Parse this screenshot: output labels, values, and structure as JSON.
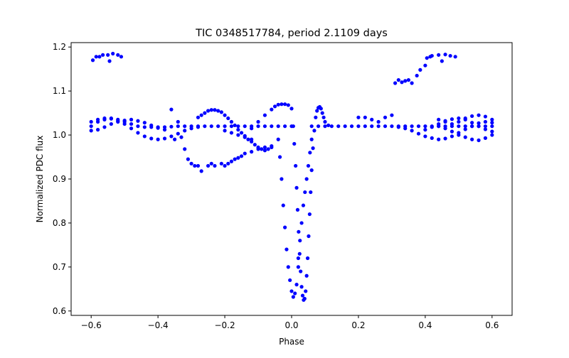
{
  "chart_data": {
    "type": "scatter",
    "title": "TIC 0348517784, period 2.1109 days",
    "xlabel": "Phase",
    "ylabel": "Normalized PDC flux",
    "xlim": [
      -0.66,
      0.66
    ],
    "ylim": [
      0.59,
      1.21
    ],
    "xticks": [
      -0.6,
      -0.4,
      -0.2,
      0.0,
      0.2,
      0.4,
      0.6
    ],
    "xtick_labels": [
      "−0.6",
      "−0.4",
      "−0.2",
      "0.0",
      "0.2",
      "0.4",
      "0.6"
    ],
    "yticks": [
      0.6,
      0.7,
      0.8,
      0.9,
      1.0,
      1.1,
      1.2
    ],
    "ytick_labels": [
      "0.6",
      "0.7",
      "0.8",
      "0.9",
      "1.0",
      "1.1",
      "1.2"
    ],
    "grid": false,
    "legend": "none",
    "marker_color": "#0000ff",
    "series": [
      {
        "points": [
          [
            -0.6,
            1.02
          ],
          [
            -0.58,
            1.03
          ],
          [
            -0.56,
            1.035
          ],
          [
            -0.54,
            1.038
          ],
          [
            -0.52,
            1.035
          ],
          [
            -0.5,
            1.03
          ],
          [
            -0.48,
            1.025
          ],
          [
            -0.46,
            1.02
          ],
          [
            -0.44,
            1.018
          ],
          [
            -0.42,
            1.018
          ],
          [
            -0.4,
            1.018
          ],
          [
            -0.38,
            1.018
          ],
          [
            -0.36,
            1.019
          ],
          [
            -0.34,
            1.02
          ],
          [
            -0.32,
            1.02
          ],
          [
            -0.3,
            1.02
          ],
          [
            -0.28,
            1.02
          ],
          [
            -0.26,
            1.02
          ],
          [
            -0.24,
            1.02
          ],
          [
            -0.22,
            1.02
          ],
          [
            -0.2,
            1.02
          ],
          [
            -0.18,
            1.02
          ],
          [
            -0.16,
            1.02
          ],
          [
            -0.14,
            1.02
          ],
          [
            -0.12,
            1.02
          ],
          [
            -0.1,
            1.02
          ],
          [
            -0.08,
            1.02
          ],
          [
            -0.06,
            1.02
          ],
          [
            -0.04,
            1.02
          ],
          [
            -0.02,
            1.02
          ],
          [
            0.0,
            1.02
          ],
          [
            0.06,
            1.02
          ],
          [
            0.08,
            1.02
          ],
          [
            0.1,
            1.02
          ],
          [
            0.12,
            1.02
          ],
          [
            0.14,
            1.02
          ],
          [
            0.16,
            1.02
          ],
          [
            0.18,
            1.02
          ],
          [
            0.2,
            1.02
          ],
          [
            0.22,
            1.02
          ],
          [
            0.24,
            1.02
          ],
          [
            0.26,
            1.02
          ],
          [
            0.28,
            1.02
          ],
          [
            0.3,
            1.02
          ],
          [
            0.32,
            1.02
          ],
          [
            0.34,
            1.02
          ],
          [
            0.36,
            1.02
          ],
          [
            0.38,
            1.02
          ],
          [
            0.4,
            1.02
          ],
          [
            0.42,
            1.02
          ],
          [
            0.44,
            1.02
          ],
          [
            0.46,
            1.02
          ],
          [
            0.48,
            1.02
          ],
          [
            0.5,
            1.02
          ],
          [
            0.52,
            1.02
          ],
          [
            0.54,
            1.02
          ],
          [
            0.56,
            1.02
          ],
          [
            0.58,
            1.02
          ],
          [
            0.6,
            1.02
          ],
          [
            -0.6,
            1.03
          ],
          [
            -0.58,
            1.035
          ],
          [
            -0.56,
            1.038
          ],
          [
            -0.54,
            1.037
          ],
          [
            -0.52,
            1.032
          ],
          [
            -0.5,
            1.025
          ],
          [
            -0.48,
            1.015
          ],
          [
            -0.46,
            1.005
          ],
          [
            -0.44,
            0.997
          ],
          [
            -0.42,
            0.992
          ],
          [
            -0.4,
            0.99
          ],
          [
            -0.38,
            0.992
          ],
          [
            -0.36,
            0.997
          ],
          [
            -0.34,
            1.003
          ],
          [
            -0.32,
            1.01
          ],
          [
            -0.3,
            1.015
          ],
          [
            -0.28,
            1.018
          ],
          [
            0.32,
            1.018
          ],
          [
            0.34,
            1.015
          ],
          [
            0.36,
            1.01
          ],
          [
            0.38,
            1.003
          ],
          [
            0.4,
            0.997
          ],
          [
            0.42,
            0.993
          ],
          [
            0.44,
            0.99
          ],
          [
            0.46,
            0.992
          ],
          [
            0.48,
            0.997
          ],
          [
            0.5,
            1.005
          ],
          [
            0.52,
            1.013
          ],
          [
            0.54,
            1.02
          ],
          [
            0.56,
            1.027
          ],
          [
            0.58,
            1.03
          ],
          [
            0.6,
            1.028
          ],
          [
            -0.6,
            1.01
          ],
          [
            -0.58,
            1.012
          ],
          [
            -0.56,
            1.018
          ],
          [
            -0.54,
            1.025
          ],
          [
            -0.52,
            1.03
          ],
          [
            -0.5,
            1.033
          ],
          [
            -0.48,
            1.035
          ],
          [
            -0.46,
            1.032
          ],
          [
            -0.44,
            1.028
          ],
          [
            -0.42,
            1.022
          ],
          [
            -0.4,
            1.016
          ],
          [
            -0.38,
            1.012
          ],
          [
            0.4,
            1.012
          ],
          [
            0.42,
            1.018
          ],
          [
            0.44,
            1.025
          ],
          [
            0.46,
            1.032
          ],
          [
            0.48,
            1.036
          ],
          [
            0.5,
            1.038
          ],
          [
            0.52,
            1.035
          ],
          [
            0.54,
            1.028
          ],
          [
            0.56,
            1.02
          ],
          [
            0.58,
            1.013
          ],
          [
            0.6,
            1.008
          ],
          [
            0.44,
            1.02
          ],
          [
            0.46,
            1.015
          ],
          [
            0.48,
            1.008
          ],
          [
            0.5,
            1.0
          ],
          [
            0.52,
            0.995
          ],
          [
            0.54,
            0.99
          ],
          [
            0.56,
            0.988
          ],
          [
            0.58,
            0.993
          ],
          [
            0.6,
            1.0
          ],
          [
            0.44,
            1.035
          ],
          [
            0.46,
            1.03
          ],
          [
            0.48,
            1.025
          ],
          [
            0.5,
            1.03
          ],
          [
            0.52,
            1.038
          ],
          [
            0.54,
            1.043
          ],
          [
            0.56,
            1.045
          ],
          [
            0.58,
            1.042
          ],
          [
            0.6,
            1.035
          ],
          [
            -0.28,
            1.04
          ],
          [
            -0.27,
            1.045
          ],
          [
            -0.26,
            1.05
          ],
          [
            -0.25,
            1.055
          ],
          [
            -0.24,
            1.057
          ],
          [
            -0.23,
            1.057
          ],
          [
            -0.22,
            1.055
          ],
          [
            -0.21,
            1.052
          ],
          [
            -0.2,
            1.045
          ],
          [
            -0.19,
            1.038
          ],
          [
            -0.18,
            1.03
          ],
          [
            -0.17,
            1.022
          ],
          [
            -0.16,
            1.012
          ],
          [
            -0.15,
            1.005
          ],
          [
            -0.14,
            0.998
          ],
          [
            -0.13,
            0.99
          ],
          [
            -0.12,
            0.985
          ],
          [
            -0.11,
            0.978
          ],
          [
            -0.1,
            0.972
          ],
          [
            -0.09,
            0.968
          ],
          [
            -0.08,
            0.965
          ],
          [
            -0.07,
            0.968
          ],
          [
            -0.06,
            0.972
          ],
          [
            -0.12,
            1.015
          ],
          [
            -0.1,
            1.03
          ],
          [
            -0.08,
            1.045
          ],
          [
            -0.06,
            1.058
          ],
          [
            -0.05,
            1.065
          ],
          [
            -0.04,
            1.069
          ],
          [
            -0.03,
            1.07
          ],
          [
            -0.02,
            1.07
          ],
          [
            -0.01,
            1.068
          ],
          [
            -0.2,
            1.01
          ],
          [
            -0.18,
            1.005
          ],
          [
            -0.16,
            1.0
          ],
          [
            -0.14,
            0.995
          ],
          [
            -0.12,
            0.99
          ],
          [
            0.0,
            1.06
          ],
          [
            0.005,
            1.02
          ],
          [
            0.008,
            0.98
          ],
          [
            0.012,
            0.93
          ],
          [
            0.015,
            0.88
          ],
          [
            0.018,
            0.83
          ],
          [
            0.021,
            0.78
          ],
          [
            0.024,
            0.73
          ],
          [
            0.027,
            0.69
          ],
          [
            0.03,
            0.655
          ],
          [
            0.033,
            0.635
          ],
          [
            0.036,
            0.625
          ],
          [
            0.039,
            0.628
          ],
          [
            0.042,
            0.645
          ],
          [
            0.045,
            0.68
          ],
          [
            0.048,
            0.72
          ],
          [
            0.051,
            0.77
          ],
          [
            0.054,
            0.82
          ],
          [
            0.057,
            0.87
          ],
          [
            0.06,
            0.92
          ],
          [
            0.064,
            0.97
          ],
          [
            0.068,
            1.01
          ],
          [
            0.072,
            1.04
          ],
          [
            0.076,
            1.055
          ],
          [
            0.08,
            1.062
          ],
          [
            0.084,
            1.064
          ],
          [
            0.088,
            1.06
          ],
          [
            0.092,
            1.05
          ],
          [
            0.096,
            1.04
          ],
          [
            0.1,
            1.03
          ],
          [
            0.11,
            1.022
          ],
          [
            -0.04,
            0.99
          ],
          [
            -0.035,
            0.95
          ],
          [
            -0.03,
            0.9
          ],
          [
            -0.025,
            0.84
          ],
          [
            -0.02,
            0.79
          ],
          [
            -0.015,
            0.74
          ],
          [
            -0.01,
            0.7
          ],
          [
            -0.005,
            0.67
          ],
          [
            0.0,
            0.645
          ],
          [
            0.005,
            0.632
          ],
          [
            0.01,
            0.64
          ],
          [
            0.015,
            0.66
          ],
          [
            0.02,
            0.7
          ],
          [
            0.06,
            0.99
          ],
          [
            0.055,
            0.96
          ],
          [
            0.05,
            0.93
          ],
          [
            0.045,
            0.9
          ],
          [
            0.04,
            0.87
          ],
          [
            0.035,
            0.84
          ],
          [
            0.03,
            0.8
          ],
          [
            0.025,
            0.76
          ],
          [
            0.02,
            0.72
          ],
          [
            -0.31,
            0.945
          ],
          [
            -0.3,
            0.935
          ],
          [
            -0.29,
            0.93
          ],
          [
            -0.28,
            0.93
          ],
          [
            -0.27,
            0.918
          ],
          [
            -0.25,
            0.93
          ],
          [
            -0.24,
            0.935
          ],
          [
            -0.23,
            0.93
          ],
          [
            -0.21,
            0.935
          ],
          [
            -0.2,
            0.93
          ],
          [
            -0.19,
            0.935
          ],
          [
            -0.18,
            0.94
          ],
          [
            -0.17,
            0.945
          ],
          [
            -0.16,
            0.948
          ],
          [
            -0.15,
            0.952
          ],
          [
            -0.14,
            0.958
          ],
          [
            -0.12,
            0.962
          ],
          [
            -0.1,
            0.968
          ],
          [
            -0.08,
            0.972
          ],
          [
            -0.06,
            0.975
          ],
          [
            -0.36,
            1.058
          ],
          [
            -0.34,
            1.03
          ],
          [
            -0.33,
            0.995
          ],
          [
            -0.32,
            0.968
          ],
          [
            -0.35,
            0.99
          ],
          [
            0.3,
            1.045
          ],
          [
            0.28,
            1.04
          ],
          [
            0.26,
            1.03
          ],
          [
            0.24,
            1.035
          ],
          [
            0.22,
            1.04
          ],
          [
            0.2,
            1.04
          ],
          [
            -0.595,
            1.17
          ],
          [
            -0.585,
            1.178
          ],
          [
            -0.575,
            1.178
          ],
          [
            -0.565,
            1.182
          ],
          [
            -0.55,
            1.182
          ],
          [
            -0.545,
            1.168
          ],
          [
            -0.535,
            1.185
          ],
          [
            -0.52,
            1.182
          ],
          [
            -0.51,
            1.178
          ],
          [
            0.31,
            1.118
          ],
          [
            0.32,
            1.125
          ],
          [
            0.33,
            1.12
          ],
          [
            0.34,
            1.123
          ],
          [
            0.35,
            1.125
          ],
          [
            0.36,
            1.118
          ],
          [
            0.375,
            1.135
          ],
          [
            0.385,
            1.148
          ],
          [
            0.4,
            1.158
          ],
          [
            0.405,
            1.175
          ],
          [
            0.415,
            1.178
          ],
          [
            0.42,
            1.18
          ],
          [
            0.44,
            1.182
          ],
          [
            0.45,
            1.168
          ],
          [
            0.46,
            1.183
          ],
          [
            0.475,
            1.18
          ],
          [
            0.49,
            1.178
          ]
        ]
      }
    ]
  }
}
